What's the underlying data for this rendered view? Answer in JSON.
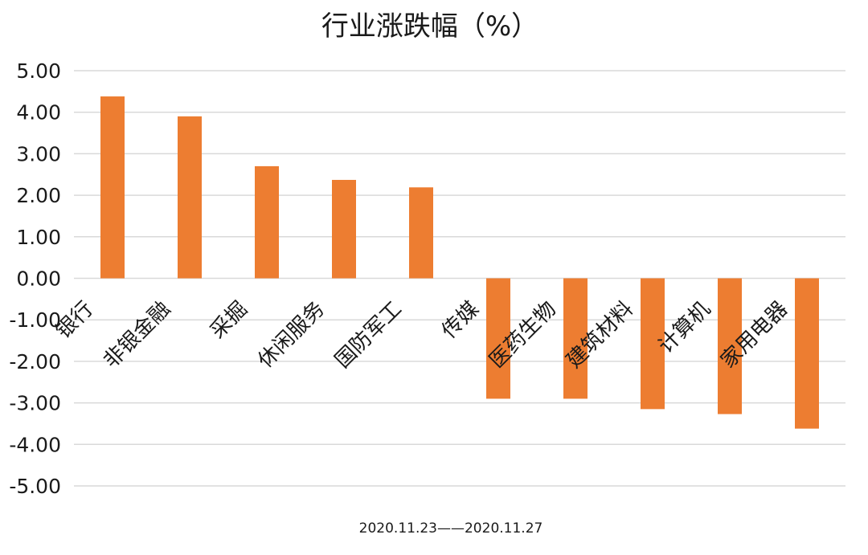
{
  "chart_data": {
    "type": "bar",
    "title": "行业涨跌幅（%）",
    "xlabel": "2020.11.23——2020.11.27",
    "ylabel": "",
    "ylim": [
      -5,
      5
    ],
    "y_ticks": [
      "5.00",
      "4.00",
      "3.00",
      "2.00",
      "1.00",
      "0.00",
      "-1.00",
      "-2.00",
      "-3.00",
      "-4.00",
      "-5.00"
    ],
    "grid": true,
    "legend": "none",
    "bar_color": "#ED7D31",
    "grid_color": "#D9D9D9",
    "categories": [
      "银行",
      "非银金融",
      "采掘",
      "休闲服务",
      "国防军工",
      "传媒",
      "医药生物",
      "建筑材料",
      "计算机",
      "家用电器"
    ],
    "values": [
      4.38,
      3.9,
      2.7,
      2.37,
      2.19,
      -2.9,
      -2.9,
      -3.15,
      -3.27,
      -3.62
    ]
  }
}
